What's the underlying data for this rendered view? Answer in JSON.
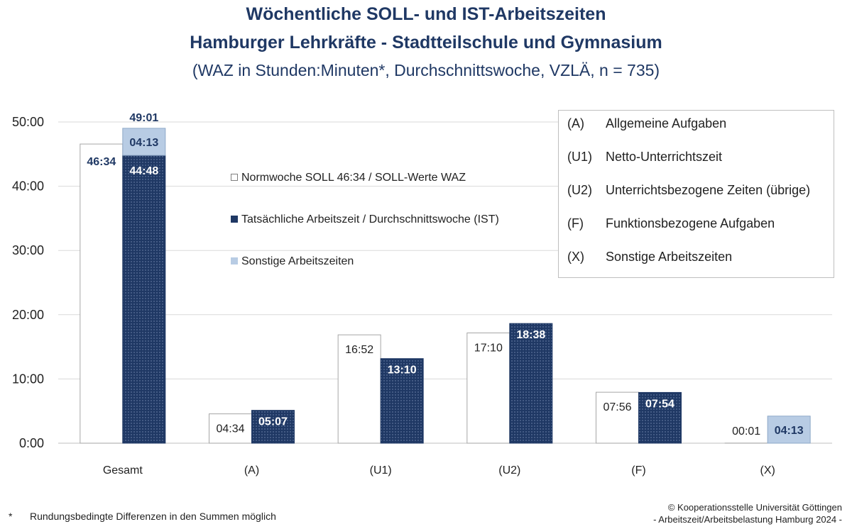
{
  "title_line1": "Wöchentliche SOLL- und IST-Arbeitszeiten",
  "title_line2": "Hamburger Lehrkräfte - Stadtteilschule und Gymnasium",
  "title_line3": "(WAZ in Stunden:Minuten*, Durchschnittswoche, VZLÄ, n = 735)",
  "legend_series": {
    "soll": "Normwoche SOLL 46:34 / SOLL-Werte WAZ",
    "ist": "Tatsächliche Arbeitszeit / Durchschnittswoche (IST)",
    "sonstige": "Sonstige Arbeitszeiten"
  },
  "legend_codes": [
    {
      "code": "(A)",
      "text": "Allgemeine Aufgaben"
    },
    {
      "code": "(U1)",
      "text": "Netto-Unterrichtszeit"
    },
    {
      "code": "(U2)",
      "text": "Unterrichtsbezogene Zeiten (übrige)"
    },
    {
      "code": "(F)",
      "text": "Funktionsbezogene Aufgaben"
    },
    {
      "code": "(X)",
      "text": "Sonstige Arbeitszeiten"
    }
  ],
  "footnote_star": "*",
  "footnote": "Rundungsbedingte Differenzen in den Summen möglich",
  "copyright_line1": "© Kooperationsstelle Universität Göttingen",
  "copyright_line2": "- Arbeitszeit/Arbeitsbelastung Hamburg 2024 -",
  "colors": {
    "title": "#1f3864",
    "ist_fill": "#1f3864",
    "sonstige_fill": "#b8cce4",
    "soll_fill": "#ffffff",
    "grid": "#d9d9d9"
  },
  "chart_data": {
    "type": "bar",
    "unit": "hours",
    "categories": [
      "Gesamt",
      "(A)",
      "(U1)",
      "(U2)",
      "(F)",
      "(X)"
    ],
    "y_ticks": [
      "0:00",
      "10:00",
      "20:00",
      "30:00",
      "40:00",
      "50:00"
    ],
    "ylim": [
      0,
      50
    ],
    "grid": true,
    "soll": {
      "values": [
        46.567,
        4.567,
        16.867,
        17.167,
        7.933,
        0.017
      ],
      "labels": [
        "46:34",
        "04:34",
        "16:52",
        "17:10",
        "07:56",
        "00:01"
      ]
    },
    "ist": {
      "values": [
        44.8,
        5.117,
        13.167,
        18.633,
        7.9,
        0
      ],
      "labels": [
        "44:48",
        "05:07",
        "13:10",
        "18:38",
        "07:54",
        ""
      ]
    },
    "sonstige": {
      "values": [
        4.217,
        0,
        0,
        0,
        0,
        4.217
      ],
      "labels": [
        "04:13",
        "",
        "",
        "",
        "",
        "04:13"
      ]
    },
    "totals": [
      "49:01",
      "",
      "",
      "",
      "",
      ""
    ]
  }
}
